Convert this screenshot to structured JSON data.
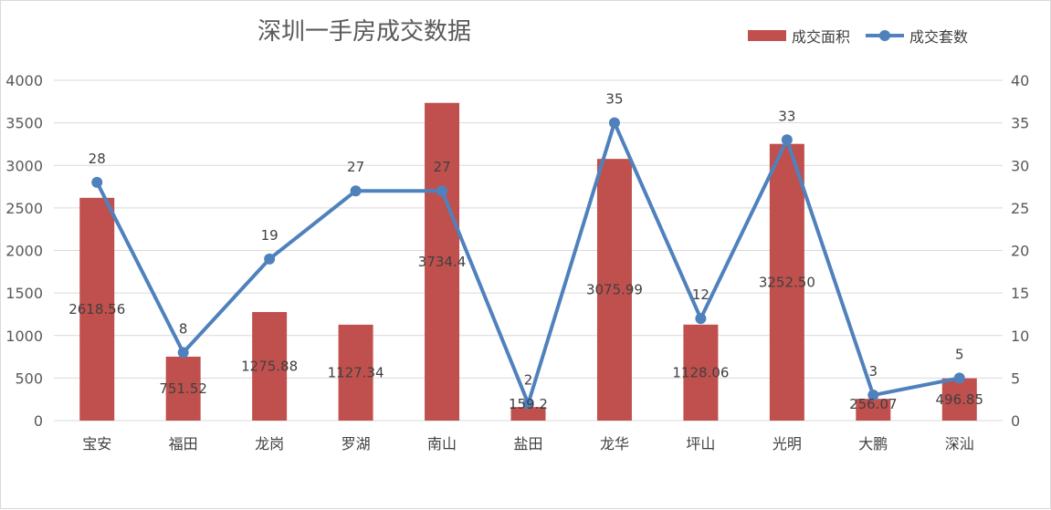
{
  "chart_data": {
    "type": "bar",
    "title": "深圳一手房成交数据",
    "categories": [
      "宝安",
      "福田",
      "龙岗",
      "罗湖",
      "南山",
      "盐田",
      "龙华",
      "坪山",
      "光明",
      "大鹏",
      "深汕"
    ],
    "series": [
      {
        "name": "成交面积",
        "type": "bar",
        "axis": "left",
        "color": "#c0504d",
        "values": [
          2618.56,
          751.52,
          1275.88,
          1127.34,
          3734.4,
          159.2,
          3075.99,
          1128.06,
          3252.5,
          256.07,
          496.85
        ],
        "labels": [
          "2618.56",
          "751.52",
          "1275.88",
          "1127.34",
          "3734.4",
          "159.2",
          "3075.99",
          "1128.06",
          "3252.50",
          "256.07",
          "496.85"
        ]
      },
      {
        "name": "成交套数",
        "type": "line",
        "axis": "right",
        "color": "#4f81bd",
        "values": [
          28,
          8,
          19,
          27,
          27,
          2,
          35,
          12,
          33,
          3,
          5
        ],
        "labels": [
          "28",
          "8",
          "19",
          "27",
          "27",
          "2",
          "35",
          "12",
          "33",
          "3",
          "5"
        ]
      }
    ],
    "ylim_left": [
      0,
      4000
    ],
    "ylim_right": [
      0,
      40
    ],
    "yticks_left": [
      "0",
      "500",
      "1000",
      "1500",
      "2000",
      "2500",
      "3000",
      "3500",
      "4000"
    ],
    "yticks_right": [
      "0",
      "5",
      "10",
      "15",
      "20",
      "25",
      "30",
      "35",
      "40"
    ],
    "grid": true,
    "legend_position": "top-right"
  }
}
